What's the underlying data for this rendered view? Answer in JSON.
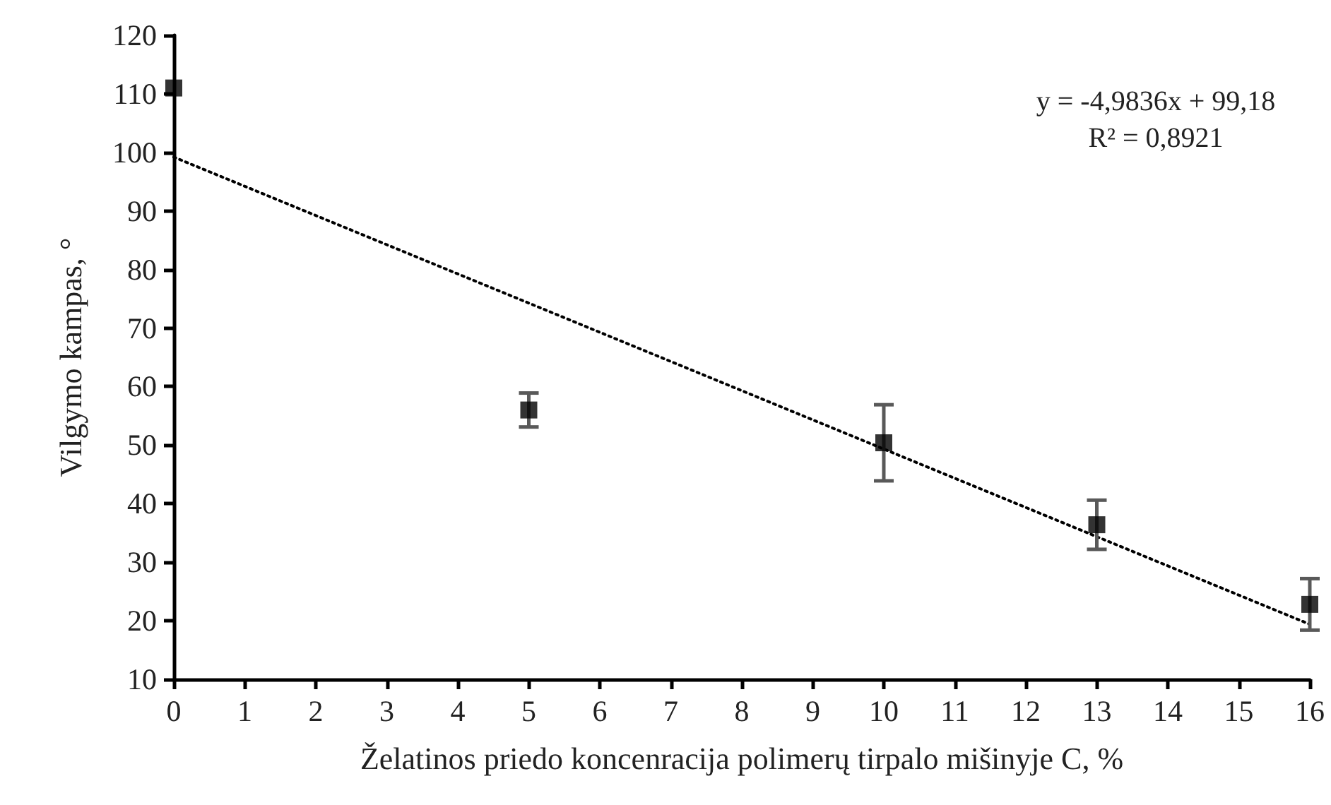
{
  "chart_data": {
    "type": "scatter",
    "xlabel": "Želatinos priedo koncenracija polimerų tirpalo mišinyje C, %",
    "ylabel": "Vilgymo kampas, °",
    "annotations": [
      "y = -4,9836x + 99,18",
      "R² = 0,8921"
    ],
    "series": [
      {
        "color": "#000000",
        "marker": "square",
        "x": [
          0,
          5,
          10,
          13,
          16
        ],
        "values": [
          111,
          56,
          50.4,
          36.4,
          22.8
        ],
        "errors": [
          null,
          2.9,
          6.5,
          4.2,
          4.4
        ]
      },
      {
        "type": "line",
        "color": "#000000",
        "marker": "none",
        "line_style": "dotted",
        "x": [
          0,
          16
        ],
        "values": [
          99.2,
          19.4
        ]
      }
    ],
    "xlim": [
      0,
      16
    ],
    "xticks": [
      0,
      1,
      2,
      3,
      4,
      5,
      6,
      7,
      8,
      9,
      10,
      11,
      12,
      13,
      14,
      15,
      16
    ],
    "ylim": [
      10,
      120
    ],
    "yticks": [
      10,
      20,
      30,
      40,
      50,
      60,
      70,
      80,
      90,
      100,
      110,
      120
    ],
    "grid": false
  }
}
